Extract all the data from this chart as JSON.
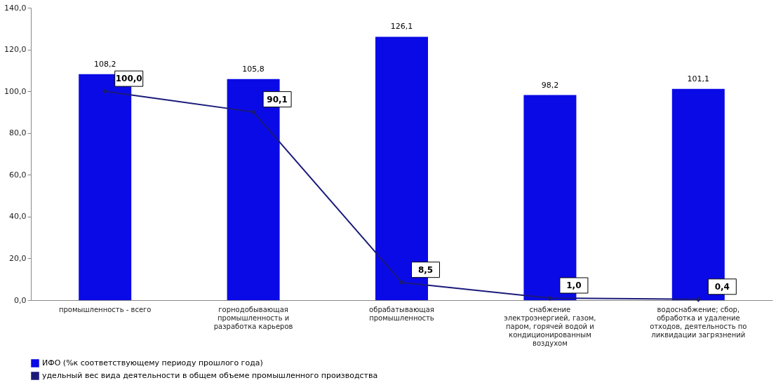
{
  "chart_data": {
    "type": "bar",
    "categories": [
      "промышленность - всего",
      "горнодобывающая промышленность и разработка карьеров",
      "обрабатывающая промышленность",
      "снабжение электроэнергией, газом, паром, горячей водой и кондиционированным воздухом",
      "водоснабжение; сбор, обработка и удаление отходов, деятельность по ликвидации загрязнений"
    ],
    "series": [
      {
        "name": "ИФО (%к соответствующему периоду прошлого года)",
        "color": "#0a0ae6",
        "values": [
          108.2,
          105.8,
          126.1,
          98.2,
          101.1
        ],
        "value_labels": [
          "108,2",
          "105,8",
          "126,1",
          "98,2",
          "101,1"
        ]
      },
      {
        "name": "удельный вес вида деятельности в общем объеме промышленного производства",
        "type": "line",
        "color": "#1a1a7a",
        "marker": "diamond",
        "values": [
          100.0,
          90.1,
          8.5,
          1.0,
          0.4
        ],
        "value_labels": [
          "100,0",
          "90,1",
          "8,5",
          "1,0",
          "0,4"
        ]
      }
    ],
    "ylim": [
      0,
      140
    ],
    "yticks": [
      {
        "value": 0,
        "label": "0,0"
      },
      {
        "value": 20,
        "label": "20,0"
      },
      {
        "value": 40,
        "label": "40,0"
      },
      {
        "value": 60,
        "label": "60,0"
      },
      {
        "value": 80,
        "label": "80,0"
      },
      {
        "value": 100,
        "label": "100,0"
      },
      {
        "value": 120,
        "label": "120,0"
      },
      {
        "value": 140,
        "label": "140,0"
      }
    ],
    "grid": false,
    "legend": "bottom"
  }
}
